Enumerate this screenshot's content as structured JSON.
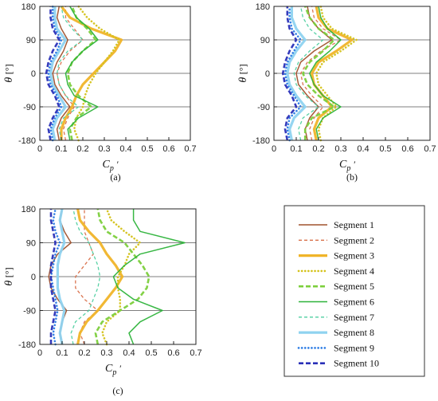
{
  "colors": {
    "segment_1": "#a0522d",
    "segment_2": "#d9704a",
    "segment_3": "#f0b429",
    "segment_4": "#d4c21a",
    "segment_5": "#7ccf3c",
    "segment_6": "#2db33a",
    "segment_7": "#4fcfa0",
    "segment_8": "#8fd3f0",
    "segment_9": "#2a7be4",
    "segment_10": "#2a30b8"
  },
  "chart_data": [
    {
      "panel": "(a)",
      "type": "line",
      "xlabel_main": "C",
      "xlabel_sub": "p",
      "xlabel_prime": "′",
      "ylabel_main": "θ",
      "ylabel_unit": "[°]",
      "xlim": [
        0,
        0.7
      ],
      "ylim": [
        -180,
        180
      ],
      "xticks": [
        "0",
        "0.1",
        "0.2",
        "0.3",
        "0.4",
        "0.5",
        "0.6",
        "0.7"
      ],
      "yticks": [
        "180",
        "90",
        "0",
        "-90",
        "-180"
      ],
      "theta": [
        -180,
        -150,
        -120,
        -90,
        -60,
        -30,
        0,
        30,
        60,
        90,
        120,
        150,
        180
      ],
      "series": [
        {
          "name": "Segment 1",
          "values": [
            0.09,
            0.08,
            0.1,
            0.14,
            0.1,
            0.07,
            0.06,
            0.08,
            0.11,
            0.13,
            0.1,
            0.08,
            0.09
          ]
        },
        {
          "name": "Segment 2",
          "values": [
            0.12,
            0.11,
            0.13,
            0.16,
            0.12,
            0.09,
            0.08,
            0.1,
            0.14,
            0.2,
            0.16,
            0.12,
            0.12
          ]
        },
        {
          "name": "Segment 3",
          "values": [
            0.1,
            0.1,
            0.12,
            0.15,
            0.17,
            0.2,
            0.25,
            0.3,
            0.35,
            0.38,
            0.24,
            0.14,
            0.1
          ]
        },
        {
          "name": "Segment 4",
          "values": [
            0.18,
            0.16,
            0.17,
            0.2,
            0.21,
            0.23,
            0.26,
            0.3,
            0.34,
            0.37,
            0.28,
            0.22,
            0.18
          ]
        },
        {
          "name": "Segment 5",
          "values": [
            0.15,
            0.14,
            0.17,
            0.24,
            0.18,
            0.14,
            0.13,
            0.15,
            0.2,
            0.26,
            0.22,
            0.17,
            0.15
          ]
        },
        {
          "name": "Segment 6",
          "values": [
            0.14,
            0.13,
            0.18,
            0.27,
            0.16,
            0.13,
            0.12,
            0.15,
            0.2,
            0.27,
            0.23,
            0.17,
            0.14
          ]
        },
        {
          "name": "Segment 7",
          "values": [
            0.1,
            0.09,
            0.11,
            0.18,
            0.12,
            0.09,
            0.08,
            0.09,
            0.13,
            0.2,
            0.15,
            0.11,
            0.1
          ]
        },
        {
          "name": "Segment 8",
          "values": [
            0.07,
            0.06,
            0.08,
            0.12,
            0.09,
            0.06,
            0.05,
            0.06,
            0.09,
            0.12,
            0.08,
            0.07,
            0.07
          ]
        },
        {
          "name": "Segment 9",
          "values": [
            0.06,
            0.05,
            0.07,
            0.1,
            0.08,
            0.05,
            0.04,
            0.05,
            0.08,
            0.1,
            0.07,
            0.06,
            0.06
          ]
        },
        {
          "name": "Segment 10",
          "values": [
            0.05,
            0.04,
            0.06,
            0.09,
            0.07,
            0.04,
            0.03,
            0.04,
            0.06,
            0.09,
            0.06,
            0.05,
            0.05
          ]
        }
      ]
    },
    {
      "panel": "(b)",
      "type": "line",
      "xlabel_main": "C",
      "xlabel_sub": "p",
      "xlabel_prime": "′",
      "ylabel_main": "θ",
      "ylabel_unit": "[°]",
      "xlim": [
        0,
        0.7
      ],
      "ylim": [
        -180,
        180
      ],
      "xticks": [
        "0",
        "0.1",
        "0.2",
        "0.3",
        "0.4",
        "0.5",
        "0.6",
        "0.7"
      ],
      "yticks": [
        "180",
        "90",
        "0",
        "-90",
        "-180"
      ],
      "theta": [
        -180,
        -150,
        -120,
        -90,
        -60,
        -30,
        0,
        30,
        60,
        90,
        120,
        150,
        180
      ],
      "series": [
        {
          "name": "Segment 1",
          "values": [
            0.15,
            0.14,
            0.16,
            0.2,
            0.15,
            0.11,
            0.1,
            0.12,
            0.18,
            0.26,
            0.2,
            0.16,
            0.15
          ]
        },
        {
          "name": "Segment 2",
          "values": [
            0.17,
            0.16,
            0.18,
            0.22,
            0.17,
            0.13,
            0.12,
            0.15,
            0.21,
            0.3,
            0.22,
            0.18,
            0.17
          ]
        },
        {
          "name": "Segment 3",
          "values": [
            0.19,
            0.18,
            0.2,
            0.26,
            0.22,
            0.18,
            0.17,
            0.2,
            0.28,
            0.35,
            0.24,
            0.2,
            0.19
          ]
        },
        {
          "name": "Segment 4",
          "values": [
            0.21,
            0.2,
            0.22,
            0.28,
            0.24,
            0.2,
            0.19,
            0.22,
            0.3,
            0.37,
            0.26,
            0.22,
            0.21
          ]
        },
        {
          "name": "Segment 5",
          "values": [
            0.14,
            0.14,
            0.17,
            0.27,
            0.2,
            0.15,
            0.13,
            0.16,
            0.22,
            0.27,
            0.2,
            0.16,
            0.14
          ]
        },
        {
          "name": "Segment 6",
          "values": [
            0.2,
            0.19,
            0.22,
            0.3,
            0.22,
            0.18,
            0.16,
            0.19,
            0.25,
            0.3,
            0.24,
            0.21,
            0.2
          ]
        },
        {
          "name": "Segment 7",
          "values": [
            0.12,
            0.11,
            0.13,
            0.2,
            0.14,
            0.1,
            0.09,
            0.11,
            0.16,
            0.22,
            0.16,
            0.13,
            0.12
          ]
        },
        {
          "name": "Segment 8",
          "values": [
            0.08,
            0.07,
            0.09,
            0.14,
            0.1,
            0.07,
            0.06,
            0.07,
            0.1,
            0.14,
            0.1,
            0.08,
            0.08
          ]
        },
        {
          "name": "Segment 9",
          "values": [
            0.07,
            0.06,
            0.07,
            0.12,
            0.09,
            0.06,
            0.05,
            0.06,
            0.09,
            0.12,
            0.08,
            0.07,
            0.07
          ]
        },
        {
          "name": "Segment 10",
          "values": [
            0.06,
            0.05,
            0.06,
            0.1,
            0.08,
            0.05,
            0.04,
            0.05,
            0.07,
            0.1,
            0.07,
            0.06,
            0.06
          ]
        }
      ]
    },
    {
      "panel": "(c)",
      "type": "line",
      "xlabel_main": "C",
      "xlabel_sub": "p",
      "xlabel_prime": "′",
      "ylabel_main": "θ",
      "ylabel_unit": "[°]",
      "xlim": [
        0,
        0.7
      ],
      "ylim": [
        -180,
        180
      ],
      "xticks": [
        "0",
        "0.1",
        "0.2",
        "0.3",
        "0.4",
        "0.5",
        "0.6",
        "0.7"
      ],
      "yticks": [
        "180",
        "90",
        "0",
        "-90",
        "-180"
      ],
      "theta": [
        -180,
        -150,
        -120,
        -90,
        -60,
        -30,
        0,
        30,
        60,
        90,
        120,
        150,
        180
      ],
      "series": [
        {
          "name": "Segment 1",
          "values": [
            0.1,
            0.09,
            0.1,
            0.12,
            0.08,
            0.05,
            0.04,
            0.05,
            0.08,
            0.14,
            0.11,
            0.09,
            0.1
          ]
        },
        {
          "name": "Segment 2",
          "values": [
            0.2,
            0.18,
            0.2,
            0.26,
            0.2,
            0.16,
            0.16,
            0.2,
            0.24,
            0.22,
            0.2,
            0.2,
            0.2
          ]
        },
        {
          "name": "Segment 3",
          "values": [
            0.17,
            0.18,
            0.21,
            0.26,
            0.3,
            0.34,
            0.37,
            0.34,
            0.3,
            0.27,
            0.22,
            0.18,
            0.17
          ]
        },
        {
          "name": "Segment 4",
          "values": [
            0.3,
            0.28,
            0.3,
            0.36,
            0.36,
            0.35,
            0.35,
            0.38,
            0.4,
            0.45,
            0.38,
            0.32,
            0.3
          ]
        },
        {
          "name": "Segment 5",
          "values": [
            0.26,
            0.25,
            0.28,
            0.36,
            0.44,
            0.48,
            0.49,
            0.46,
            0.42,
            0.38,
            0.3,
            0.27,
            0.26
          ]
        },
        {
          "name": "Segment 6",
          "values": [
            0.42,
            0.4,
            0.45,
            0.55,
            0.42,
            0.35,
            0.33,
            0.38,
            0.45,
            0.65,
            0.45,
            0.42,
            0.42
          ]
        },
        {
          "name": "Segment 7",
          "values": [
            0.15,
            0.14,
            0.16,
            0.22,
            0.24,
            0.26,
            0.27,
            0.26,
            0.24,
            0.22,
            0.18,
            0.16,
            0.15
          ]
        },
        {
          "name": "Segment 8",
          "values": [
            0.1,
            0.09,
            0.1,
            0.11,
            0.09,
            0.08,
            0.08,
            0.08,
            0.09,
            0.11,
            0.1,
            0.09,
            0.1
          ]
        },
        {
          "name": "Segment 9",
          "values": [
            0.07,
            0.06,
            0.07,
            0.08,
            0.07,
            0.06,
            0.05,
            0.06,
            0.07,
            0.09,
            0.07,
            0.06,
            0.07
          ]
        },
        {
          "name": "Segment 10",
          "values": [
            0.05,
            0.05,
            0.06,
            0.07,
            0.06,
            0.05,
            0.05,
            0.05,
            0.06,
            0.07,
            0.06,
            0.05,
            0.05
          ]
        }
      ]
    }
  ],
  "legend": {
    "placement": "right of panel (c)",
    "entries": [
      {
        "label": "Segment 1",
        "style": "solid",
        "color_key": "segment_1"
      },
      {
        "label": "Segment 2",
        "style": "dashed",
        "color_key": "segment_2"
      },
      {
        "label": "Segment 3",
        "style": "solid-thick",
        "color_key": "segment_3"
      },
      {
        "label": "Segment 4",
        "style": "dotted",
        "color_key": "segment_4"
      },
      {
        "label": "Segment 5",
        "style": "dashed-thick",
        "color_key": "segment_5"
      },
      {
        "label": "Segment 6",
        "style": "solid",
        "color_key": "segment_6"
      },
      {
        "label": "Segment 7",
        "style": "dashed",
        "color_key": "segment_7"
      },
      {
        "label": "Segment 8",
        "style": "solid-thick",
        "color_key": "segment_8"
      },
      {
        "label": "Segment 9",
        "style": "dotted",
        "color_key": "segment_9"
      },
      {
        "label": "Segment 10",
        "style": "dashed-thick",
        "color_key": "segment_10"
      }
    ]
  }
}
